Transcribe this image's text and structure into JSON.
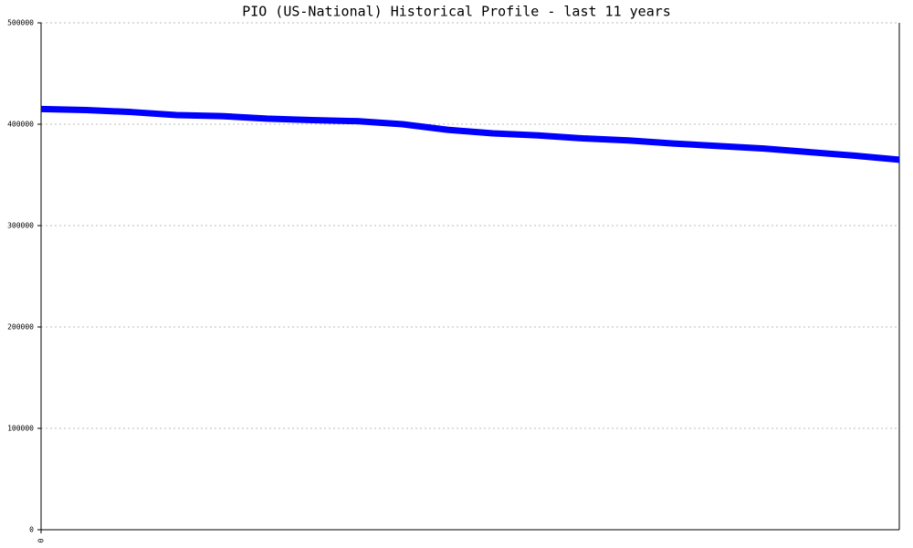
{
  "chart_data": {
    "type": "line",
    "title": "PIO (US-National) Historical Profile - last 11 years",
    "x": [
      0,
      1,
      2,
      3,
      4,
      5,
      6,
      7,
      8,
      9,
      10,
      11,
      12,
      13,
      14,
      15,
      16,
      17,
      18,
      19
    ],
    "series": [
      {
        "color": "#0000ff",
        "values": [
          415000,
          414000,
          412000,
          409000,
          408000,
          405500,
          404000,
          403000,
          400000,
          394500,
          391000,
          389000,
          386000,
          384000,
          381000,
          378500,
          376000,
          372500,
          369000,
          365000
        ]
      }
    ],
    "xlim": [
      0,
      19
    ],
    "xticks": [
      0
    ],
    "ylim": [
      0,
      500000
    ],
    "yticks": [
      0,
      100000,
      200000,
      300000,
      400000,
      500000
    ],
    "grid": true
  }
}
